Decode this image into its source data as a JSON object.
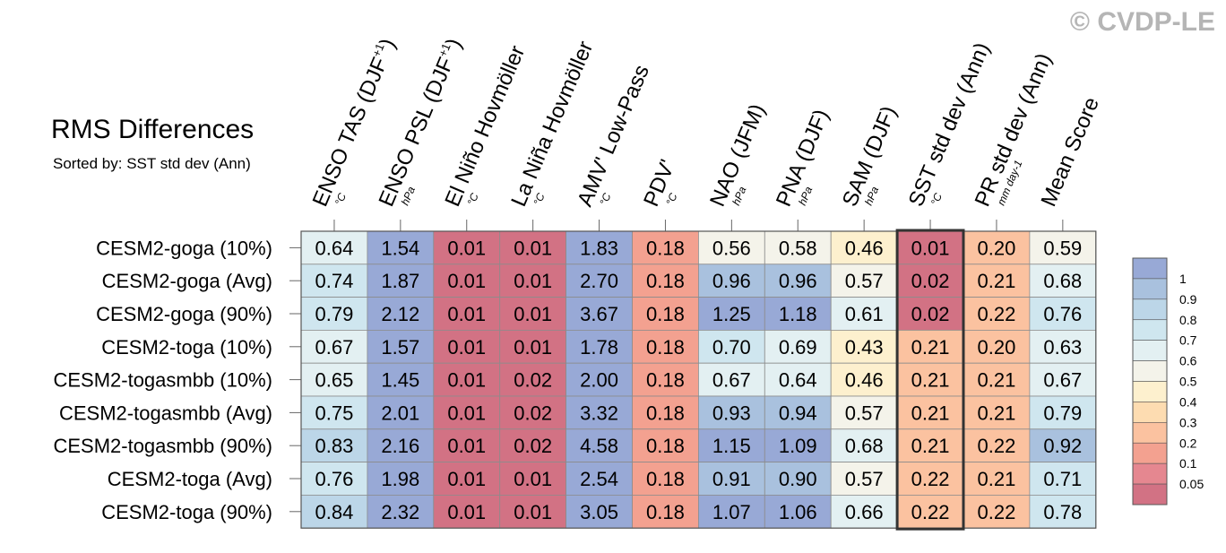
{
  "watermark": "© CVDP-LE",
  "chart_data": {
    "type": "heatmap",
    "title": "RMS Differences",
    "subtitle": "Sorted by: SST std dev (Ann)",
    "columns": [
      {
        "label": "ENSO TAS (DJF+1)",
        "main": "ENSO TAS (DJF",
        "sup": "+1",
        "close": ")",
        "unit": "°C"
      },
      {
        "label": "ENSO PSL (DJF+1)",
        "main": "ENSO PSL (DJF",
        "sup": "+1",
        "close": ")",
        "unit": "hPa"
      },
      {
        "label": "El Niño Hovmöller",
        "main": "El Niño Hovmöller",
        "sup": "",
        "close": "",
        "unit": "°C"
      },
      {
        "label": "La Niña Hovmöller",
        "main": "La Niña Hovmöller",
        "sup": "",
        "close": "",
        "unit": "°C"
      },
      {
        "label": "AMV' Low-Pass",
        "main": "AMV' Low-Pass",
        "sup": "",
        "close": "",
        "unit": "°C"
      },
      {
        "label": "PDV'",
        "main": "PDV'",
        "sup": "",
        "close": "",
        "unit": "°C"
      },
      {
        "label": "NAO (JFM)",
        "main": "NAO (JFM)",
        "sup": "",
        "close": "",
        "unit": "hPa"
      },
      {
        "label": "PNA (DJF)",
        "main": "PNA (DJF)",
        "sup": "",
        "close": "",
        "unit": "hPa"
      },
      {
        "label": "SAM (DJF)",
        "main": "SAM (DJF)",
        "sup": "",
        "close": "",
        "unit": "hPa"
      },
      {
        "label": "SST std dev (Ann)",
        "main": "SST std dev (Ann)",
        "sup": "",
        "close": "",
        "unit": "°C"
      },
      {
        "label": "PR std dev (Ann)",
        "main": "PR std dev (Ann)",
        "sup": "",
        "close": "",
        "unit": "mm day-1"
      },
      {
        "label": "Mean Score",
        "main": "Mean Score",
        "sup": "",
        "close": "",
        "unit": ""
      }
    ],
    "rows": [
      "CESM2-goga (10%)",
      "CESM2-goga (Avg)",
      "CESM2-goga (90%)",
      "CESM2-toga (10%)",
      "CESM2-togasmbb (10%)",
      "CESM2-togasmbb (Avg)",
      "CESM2-togasmbb (90%)",
      "CESM2-toga (Avg)",
      "CESM2-toga (90%)"
    ],
    "values": [
      [
        0.64,
        1.54,
        0.01,
        0.01,
        1.83,
        0.18,
        0.56,
        0.58,
        0.46,
        0.01,
        0.2,
        0.59
      ],
      [
        0.74,
        1.87,
        0.01,
        0.01,
        2.7,
        0.18,
        0.96,
        0.96,
        0.57,
        0.02,
        0.21,
        0.68
      ],
      [
        0.79,
        2.12,
        0.01,
        0.01,
        3.67,
        0.18,
        1.25,
        1.18,
        0.61,
        0.02,
        0.22,
        0.76
      ],
      [
        0.67,
        1.57,
        0.01,
        0.01,
        1.78,
        0.18,
        0.7,
        0.69,
        0.43,
        0.21,
        0.2,
        0.63
      ],
      [
        0.65,
        1.45,
        0.01,
        0.02,
        2.0,
        0.18,
        0.67,
        0.64,
        0.46,
        0.21,
        0.21,
        0.67
      ],
      [
        0.75,
        2.01,
        0.01,
        0.02,
        3.32,
        0.18,
        0.93,
        0.94,
        0.57,
        0.21,
        0.21,
        0.79
      ],
      [
        0.83,
        2.16,
        0.01,
        0.02,
        4.58,
        0.18,
        1.15,
        1.09,
        0.68,
        0.21,
        0.22,
        0.92
      ],
      [
        0.76,
        1.98,
        0.01,
        0.01,
        2.54,
        0.18,
        0.91,
        0.9,
        0.57,
        0.22,
        0.21,
        0.71
      ],
      [
        0.84,
        2.32,
        0.01,
        0.01,
        3.05,
        0.18,
        1.07,
        1.06,
        0.66,
        0.22,
        0.22,
        0.78
      ]
    ],
    "highlighted_column": "SST std dev (Ann)",
    "colorbar": {
      "labels": [
        "1",
        "0.9",
        "0.8",
        "0.7",
        "0.6",
        "0.5",
        "0.4",
        "0.3",
        "0.2",
        "0.1",
        "0.05"
      ],
      "thresholds": [
        1,
        0.9,
        0.8,
        0.7,
        0.6,
        0.5,
        0.4,
        0.3,
        0.2,
        0.1,
        0.05
      ],
      "colors": [
        "#98a9d6",
        "#a9c1de",
        "#bcd6e8",
        "#cfe6ef",
        "#e3f0f2",
        "#f4f3ea",
        "#fdf0ce",
        "#fddcb1",
        "#fbc2a0",
        "#f3a190",
        "#e58790",
        "#d27284"
      ]
    }
  }
}
